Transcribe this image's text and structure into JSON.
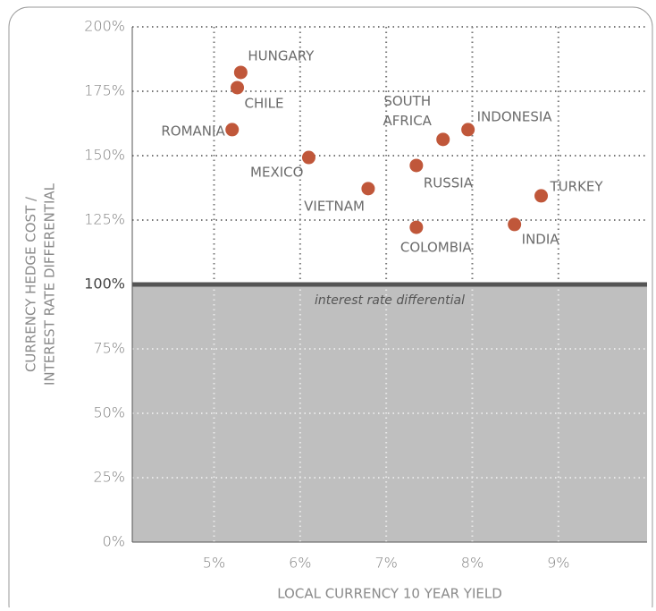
{
  "chart_data": {
    "type": "scatter",
    "xlabel": "LOCAL CURRENCY 10 YEAR YIELD",
    "ylabel": [
      "CURRENCY HEDGE COST /",
      "INTEREST RATE DIFFERENTIAL"
    ],
    "categories": [
      "HUNGARY",
      "CHILE",
      "ROMANIA",
      "MEXICO",
      "VIETNAM",
      "RUSSIA",
      "COLOMBIA",
      "SOUTH AFRICA",
      "INDONESIA",
      "INDIA",
      "TURKEY"
    ],
    "x": [
      5.31,
      5.27,
      5.21,
      6.1,
      6.79,
      7.35,
      7.35,
      7.66,
      7.95,
      8.49,
      8.8
    ],
    "values": [
      182.3,
      176.4,
      160.1,
      149.3,
      137.2,
      146.2,
      122.2,
      156.3,
      160.1,
      123.3,
      134.4
    ],
    "color": "#c0573a",
    "xlim": [
      4.05,
      10.03
    ],
    "ylim": [
      0,
      200
    ],
    "xticks": [
      {
        "value": 5,
        "label": "5%"
      },
      {
        "value": 6,
        "label": "6%"
      },
      {
        "value": 7,
        "label": "7%"
      },
      {
        "value": 8,
        "label": "8%"
      },
      {
        "value": 9,
        "label": "9%"
      }
    ],
    "yticks": [
      {
        "value": 0,
        "label": "0%"
      },
      {
        "value": 25,
        "label": "25%"
      },
      {
        "value": 50,
        "label": "50%"
      },
      {
        "value": 75,
        "label": "75%"
      },
      {
        "value": 100,
        "label": "100%"
      },
      {
        "value": 125,
        "label": "125%"
      },
      {
        "value": 150,
        "label": "150%"
      },
      {
        "value": 175,
        "label": "175%"
      },
      {
        "value": 200,
        "label": "200%"
      }
    ],
    "grid": true,
    "reference_line": {
      "value": 100,
      "label": "interest rate differential",
      "color": "#555555",
      "shade_below": "#bfbfbf"
    }
  }
}
